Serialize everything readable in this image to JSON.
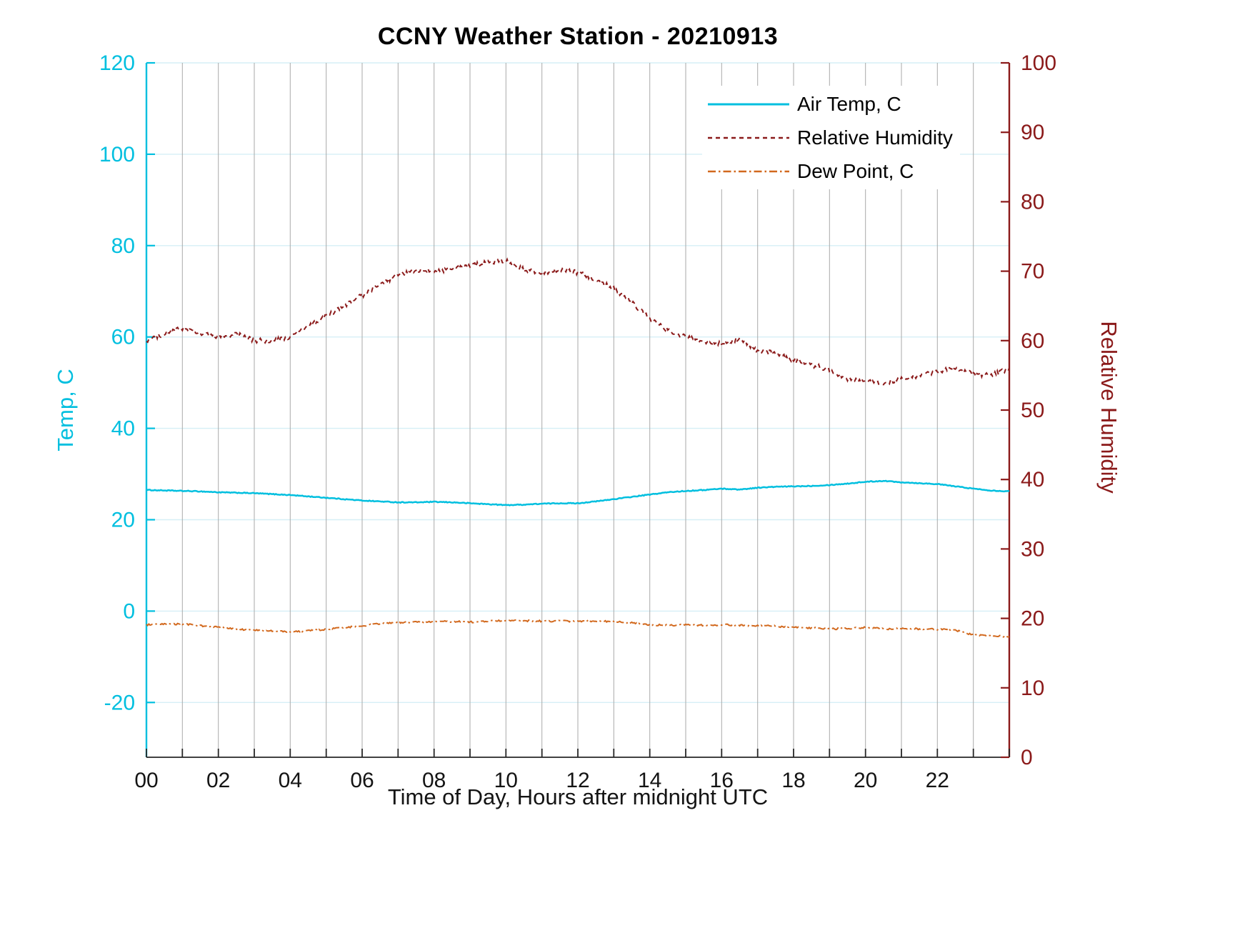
{
  "title": "CCNY Weather Station - 20210913",
  "chart_data": {
    "type": "line",
    "title": "CCNY Weather Station - 20210913",
    "xlabel": "Time of Day, Hours after midnight UTC",
    "xlim": [
      0,
      24
    ],
    "x_tick_labels": [
      "00",
      "02",
      "04",
      "06",
      "08",
      "10",
      "12",
      "14",
      "16",
      "18",
      "20",
      "22"
    ],
    "x_tick_step_hours": 2,
    "x_gridline_every_hours": 1,
    "x_sample_step_hours": 0.5,
    "x_axis_color": "#262626",
    "grid": {
      "horizontal_color": "#d6eff6",
      "vertical_color": "#a9a9a9"
    },
    "legend_position": "upper right inside",
    "left_axis": {
      "label": "Temp, C",
      "color": "#00BFDF",
      "lim": [
        -32,
        120
      ],
      "ticks": [
        120,
        100,
        80,
        60,
        40,
        20,
        0,
        -20
      ]
    },
    "right_axis": {
      "label": "Relative Humidity",
      "color": "#8B1A1A",
      "lim": [
        0,
        100
      ],
      "ticks": [
        100,
        90,
        80,
        70,
        60,
        50,
        40,
        30,
        20,
        10,
        0
      ]
    },
    "series": [
      {
        "name": "Air Temp, C",
        "axis": "left",
        "color": "#00BFDF",
        "style": "solid",
        "jitter": 0.09,
        "values": [
          26.5,
          26.4,
          26.3,
          26.2,
          26.0,
          25.9,
          25.8,
          25.6,
          25.4,
          25.1,
          24.8,
          24.5,
          24.2,
          24.0,
          23.8,
          23.8,
          23.9,
          23.8,
          23.6,
          23.4,
          23.2,
          23.3,
          23.5,
          23.6,
          23.6,
          24.0,
          24.5,
          25.0,
          25.5,
          26.0,
          26.3,
          26.5,
          26.8,
          26.6,
          27.0,
          27.2,
          27.3,
          27.4,
          27.6,
          27.9,
          28.3,
          28.5,
          28.2,
          28.0,
          27.8,
          27.3,
          26.8,
          26.4,
          26.2
        ]
      },
      {
        "name": "Relative Humidity",
        "axis": "right",
        "color": "#8B1A1A",
        "style": "dashed",
        "jitter": 0.35,
        "values": [
          60.0,
          61.0,
          61.8,
          61.0,
          60.5,
          61.0,
          60.0,
          60.0,
          60.5,
          62.0,
          63.5,
          65.0,
          66.5,
          68.0,
          69.5,
          70.0,
          70.0,
          70.3,
          70.8,
          71.3,
          71.5,
          70.2,
          69.8,
          70.2,
          69.8,
          68.8,
          67.5,
          65.5,
          63.2,
          61.5,
          60.5,
          59.8,
          59.5,
          60.3,
          58.5,
          58.2,
          57.2,
          56.5,
          55.8,
          54.5,
          54.2,
          53.8,
          54.5,
          55.0,
          55.5,
          56.0,
          55.2,
          55.0,
          56.0
        ]
      },
      {
        "name": "Dew Point, C",
        "axis": "left",
        "color": "#D2691E",
        "style": "dashdot",
        "jitter": 0.18,
        "values": [
          -3.0,
          -2.9,
          -2.8,
          -3.2,
          -3.5,
          -4.0,
          -4.2,
          -4.4,
          -4.5,
          -4.3,
          -4.0,
          -3.6,
          -3.2,
          -2.8,
          -2.5,
          -2.4,
          -2.3,
          -2.3,
          -2.4,
          -2.2,
          -2.1,
          -2.1,
          -2.2,
          -2.2,
          -2.2,
          -2.3,
          -2.2,
          -2.6,
          -3.0,
          -3.1,
          -3.0,
          -3.1,
          -3.0,
          -3.1,
          -3.2,
          -3.3,
          -3.6,
          -3.7,
          -3.9,
          -3.8,
          -3.6,
          -3.9,
          -3.8,
          -3.9,
          -4.0,
          -4.2,
          -5.2,
          -5.5,
          -5.5
        ]
      }
    ]
  }
}
